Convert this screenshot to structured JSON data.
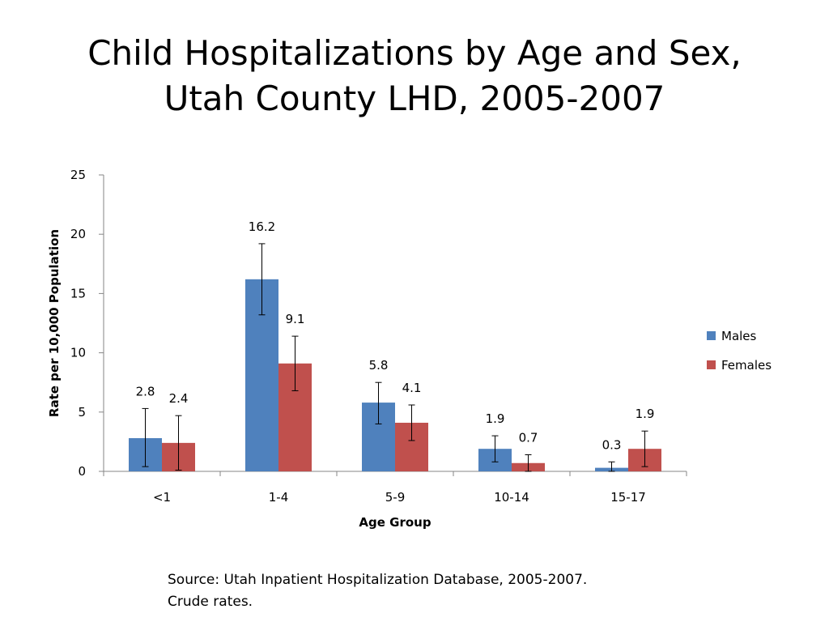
{
  "slide": {
    "title_line1": "Child Hospitalizations by Age and Sex,",
    "title_line2": "Utah County LHD, 2005-2007",
    "source_line1": "Source: Utah Inpatient Hospitalization Database, 2005-2007.",
    "source_line2": "Crude rates."
  },
  "chart_data": {
    "type": "bar",
    "title": "",
    "xlabel": "Age Group",
    "ylabel": "Rate per 10,000 Population",
    "categories": [
      "<1",
      "1-4",
      "5-9",
      "10-14",
      "15-17"
    ],
    "ylim": [
      0,
      25
    ],
    "yticks": [
      0,
      5,
      10,
      15,
      20,
      25
    ],
    "grid": false,
    "legend_position": "right",
    "series": [
      {
        "name": "Males",
        "color": "#4F81BD",
        "values": [
          2.8,
          16.2,
          5.8,
          1.9,
          0.3
        ],
        "labels": [
          "2.8",
          "16.2",
          "5.8",
          "1.9",
          "0.3"
        ],
        "error_low": [
          0.4,
          13.2,
          4.0,
          0.8,
          0.0
        ],
        "error_high": [
          5.3,
          19.2,
          7.5,
          3.0,
          0.8
        ]
      },
      {
        "name": "Females",
        "color": "#C0504D",
        "values": [
          2.4,
          9.1,
          4.1,
          0.7,
          1.9
        ],
        "labels": [
          "2.4",
          "9.1",
          "4.1",
          "0.7",
          "1.9"
        ],
        "error_low": [
          0.1,
          6.8,
          2.6,
          0.0,
          0.4
        ],
        "error_high": [
          4.7,
          11.4,
          5.6,
          1.4,
          3.4
        ]
      }
    ]
  }
}
